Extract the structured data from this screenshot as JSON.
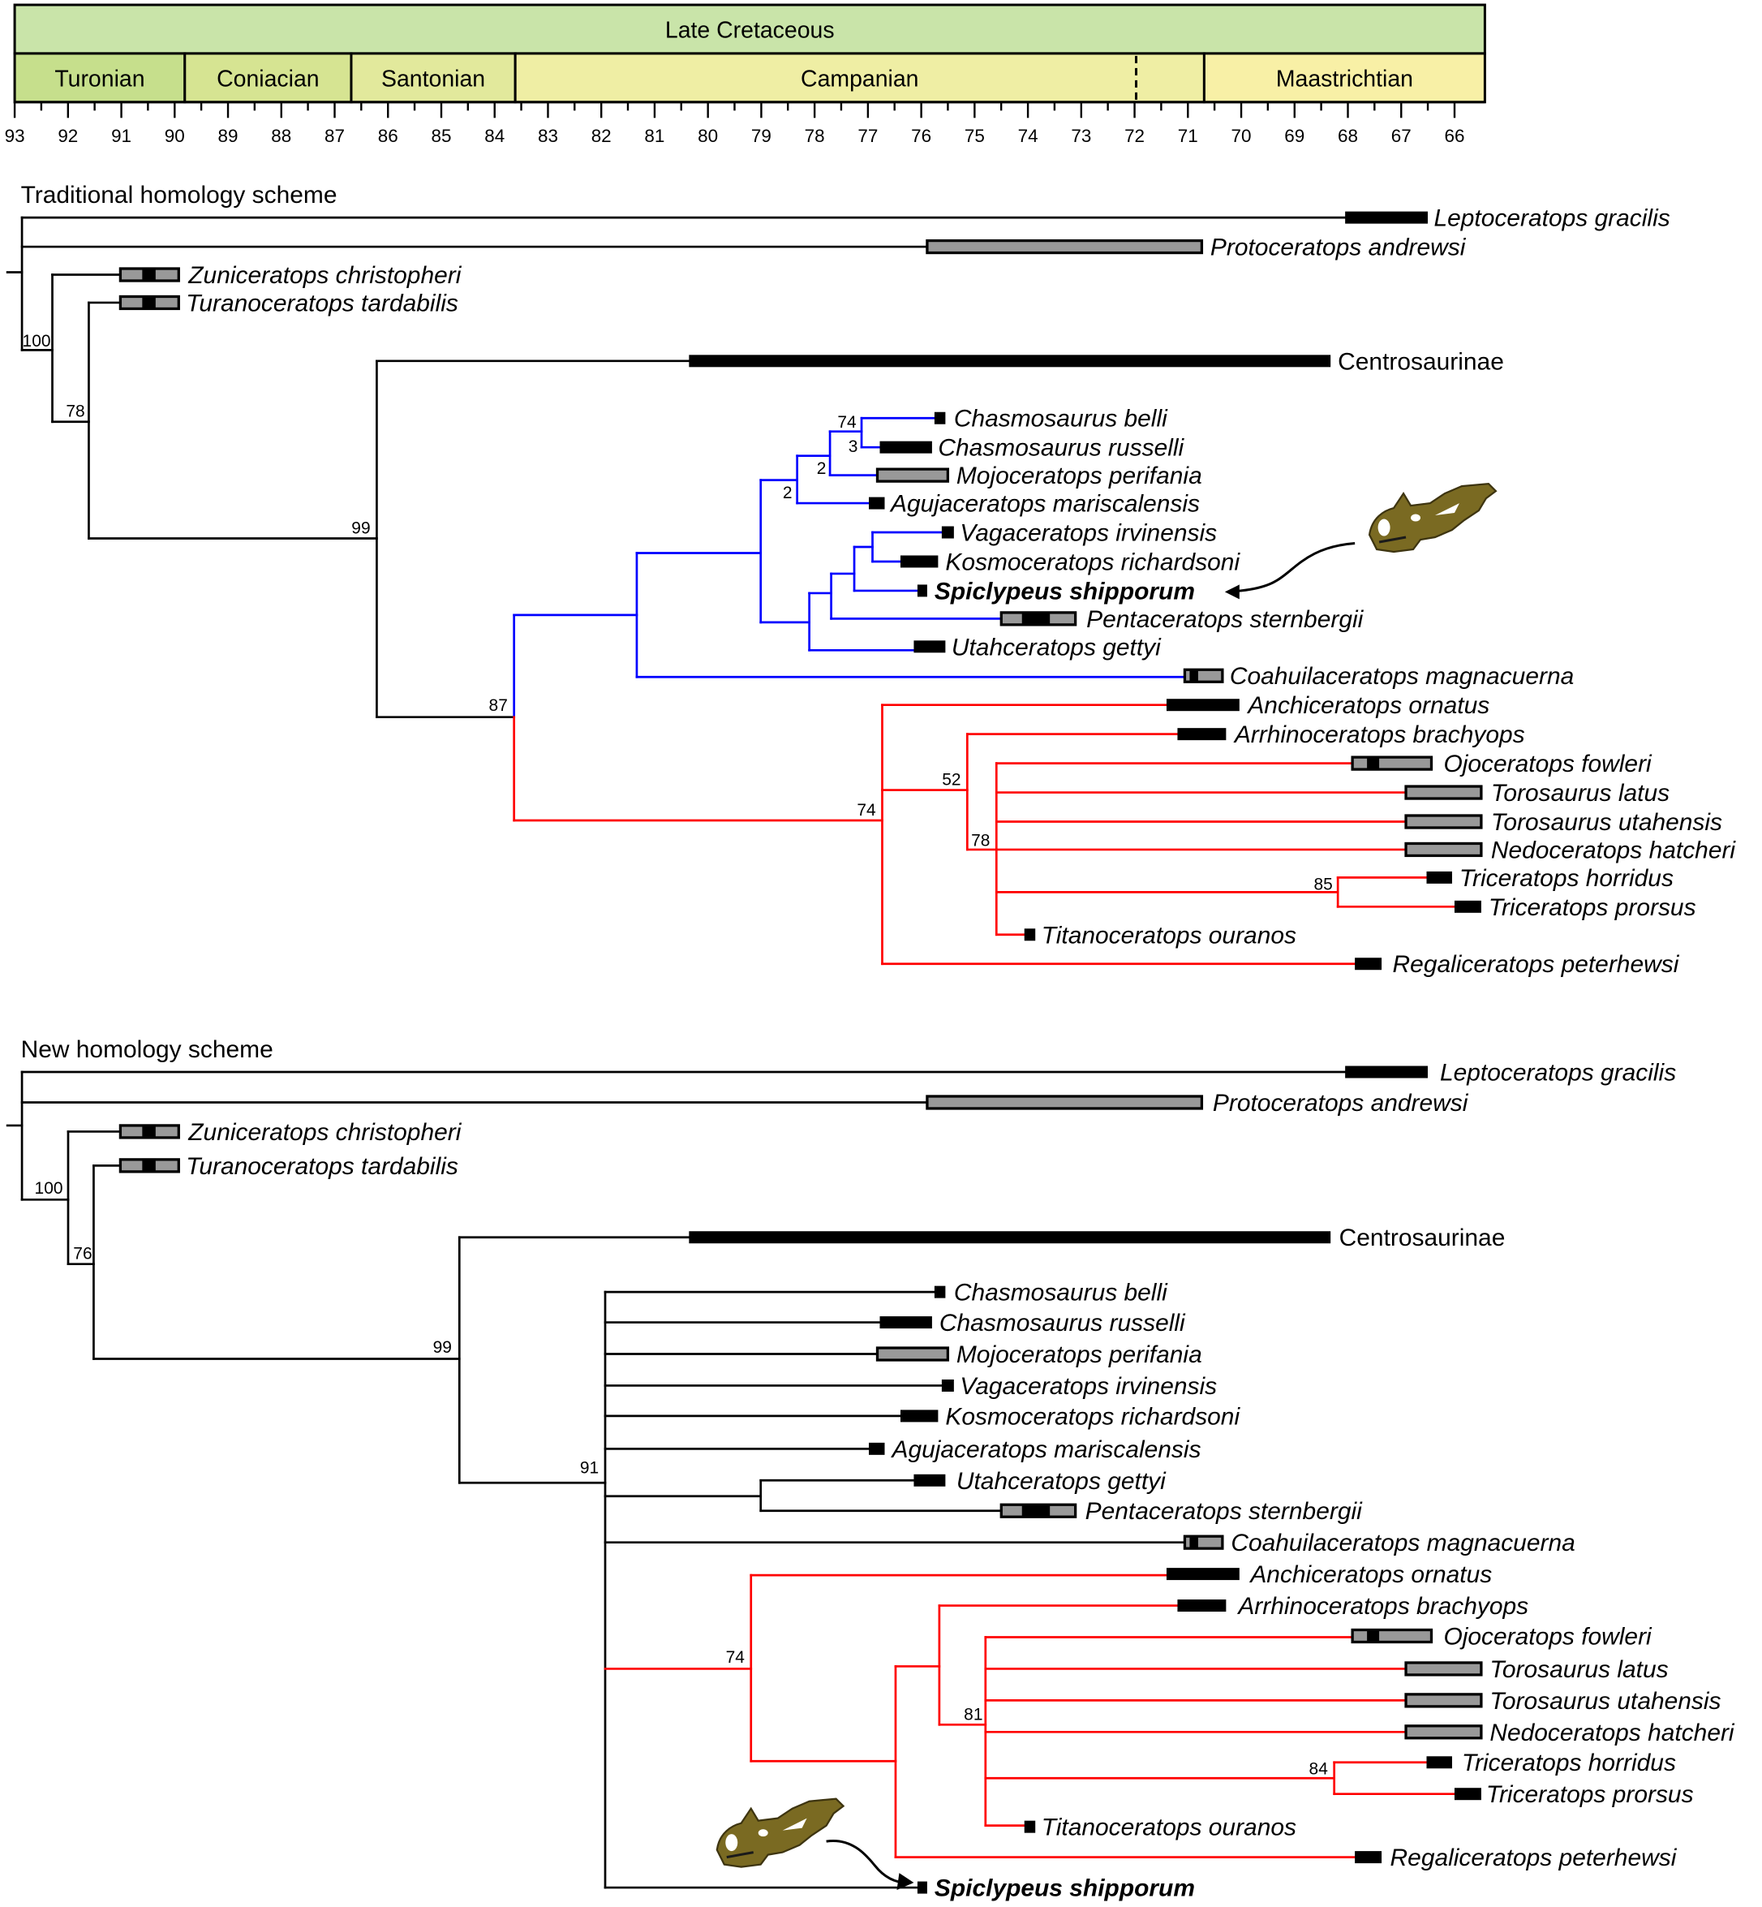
{
  "timescale": {
    "epoch": "Late Cretaceous",
    "stages": [
      "Turonian",
      "Coniacian",
      "Santonian",
      "Campanian",
      "Maastrichtian"
    ],
    "ticks": [
      "93",
      "92",
      "91",
      "90",
      "89",
      "88",
      "87",
      "86",
      "85",
      "84",
      "83",
      "82",
      "81",
      "80",
      "79",
      "78",
      "77",
      "76",
      "75",
      "74",
      "73",
      "72",
      "71",
      "70",
      "69",
      "68",
      "67",
      "66"
    ],
    "colors": {
      "epoch": "#c9e4a9",
      "turonian": "#c6df8c",
      "coniacian": "#d6e492",
      "santonian": "#e2e99c",
      "campanian": "#efeea4",
      "maastrichtian": "#f8f0a6"
    }
  },
  "colors": {
    "branch": "#000000",
    "blue_clade": "#0000ff",
    "red_clade": "#ff0000",
    "range_gray": "#999999",
    "skull": "#7a6a22"
  },
  "trees": [
    {
      "title": "Traditional homology scheme",
      "taxa": [
        {
          "name": "Leptoceratops gracilis"
        },
        {
          "name": "Protoceratops andrewsi"
        },
        {
          "name": "Zuniceratops christopheri"
        },
        {
          "name": "Turanoceratops tardabilis"
        },
        {
          "name": "Centrosaurinae"
        },
        {
          "name": "Chasmosaurus belli"
        },
        {
          "name": "Chasmosaurus russelli"
        },
        {
          "name": "Mojoceratops perifania"
        },
        {
          "name": "Agujaceratops mariscalensis"
        },
        {
          "name": "Vagaceratops irvinensis"
        },
        {
          "name": "Kosmoceratops richardsoni"
        },
        {
          "name": "Spiclypeus shipporum"
        },
        {
          "name": "Pentaceratops sternbergii"
        },
        {
          "name": "Utahceratops gettyi"
        },
        {
          "name": "Coahuilaceratops magnacuerna"
        },
        {
          "name": "Anchiceratops ornatus"
        },
        {
          "name": "Arrhinoceratops brachyops"
        },
        {
          "name": "Ojoceratops fowleri"
        },
        {
          "name": "Torosaurus latus"
        },
        {
          "name": "Torosaurus utahensis"
        },
        {
          "name": "Nedoceratops hatcheri"
        },
        {
          "name": "Triceratops horridus"
        },
        {
          "name": "Triceratops prorsus"
        },
        {
          "name": "Titanoceratops ouranos"
        },
        {
          "name": "Regaliceratops peterhewsi"
        }
      ],
      "support": [
        "100",
        "78",
        "99",
        "87",
        "74",
        "3",
        "2",
        "2",
        "74",
        "52",
        "78",
        "85"
      ]
    },
    {
      "title": "New homology scheme",
      "taxa": [
        {
          "name": "Leptoceratops gracilis"
        },
        {
          "name": "Protoceratops andrewsi"
        },
        {
          "name": "Zuniceratops christopheri"
        },
        {
          "name": "Turanoceratops tardabilis"
        },
        {
          "name": "Centrosaurinae"
        },
        {
          "name": "Chasmosaurus belli"
        },
        {
          "name": "Chasmosaurus russelli"
        },
        {
          "name": "Mojoceratops perifania"
        },
        {
          "name": "Vagaceratops irvinensis"
        },
        {
          "name": "Kosmoceratops richardsoni"
        },
        {
          "name": "Agujaceratops mariscalensis"
        },
        {
          "name": "Utahceratops gettyi"
        },
        {
          "name": "Pentaceratops sternbergii"
        },
        {
          "name": "Coahuilaceratops magnacuerna"
        },
        {
          "name": "Anchiceratops ornatus"
        },
        {
          "name": "Arrhinoceratops brachyops"
        },
        {
          "name": "Ojoceratops fowleri"
        },
        {
          "name": "Torosaurus latus"
        },
        {
          "name": "Torosaurus utahensis"
        },
        {
          "name": "Nedoceratops hatcheri"
        },
        {
          "name": "Triceratops horridus"
        },
        {
          "name": "Triceratops prorsus"
        },
        {
          "name": "Titanoceratops ouranos"
        },
        {
          "name": "Regaliceratops peterhewsi"
        },
        {
          "name": "Spiclypeus shipporum"
        }
      ],
      "support": [
        "100",
        "76",
        "99",
        "91",
        "74",
        "81",
        "84"
      ]
    }
  ]
}
